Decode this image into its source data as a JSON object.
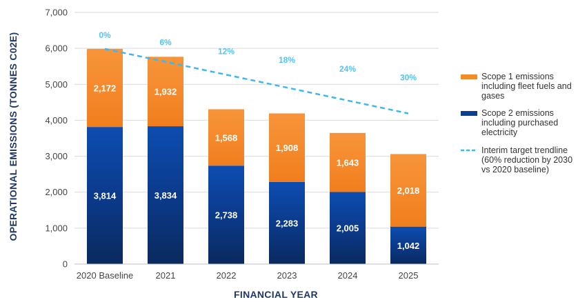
{
  "chart_data": {
    "type": "bar",
    "stacked": true,
    "categories": [
      "2020 Baseline",
      "2021",
      "2022",
      "2023",
      "2024",
      "2025"
    ],
    "series": [
      {
        "key": "scope2",
        "name": "Scope 2 emissions including purchased electricity",
        "legend_lines": [
          "Scope 2 emissions",
          "including purchased",
          "electricity"
        ],
        "color": "#0b3f94",
        "values": [
          3814,
          3834,
          2738,
          2283,
          2005,
          1042
        ],
        "labels": [
          "3,814",
          "3,834",
          "2,738",
          "2,283",
          "2,005",
          "1,042"
        ]
      },
      {
        "key": "scope1",
        "name": "Scope 1 emissions including fleet fuels and gases",
        "legend_lines": [
          "Scope 1 emissions",
          "including fleet fuels and",
          "gases"
        ],
        "color": "#f58a2c",
        "values": [
          2172,
          1932,
          1568,
          1908,
          1643,
          2018
        ],
        "labels": [
          "2,172",
          "1,932",
          "1,568",
          "1,908",
          "1,643",
          "2,018"
        ]
      }
    ],
    "trendline": {
      "name": "Interim target trendline (60% reduction by 2030 vs 2020 baseline)",
      "legend_lines": [
        "Interim target trendline",
        "(60% reduction by 2030",
        "vs 2020 baseline)"
      ],
      "color": "#3db8ec",
      "style": "dashed",
      "start": {
        "category": "2020 Baseline",
        "value": 5986
      },
      "end": {
        "category": "2025",
        "value": 4190
      },
      "reduction_labels": [
        "0%",
        "6%",
        "12%",
        "18%",
        "24%",
        "30%"
      ]
    },
    "xlabel": "FINANCIAL YEAR",
    "ylabel": "OPERATIONAL EMISSIONS (TONNES C02E)",
    "ylim": [
      0,
      7000
    ],
    "yticks": [
      "0",
      "1,000",
      "2,000",
      "3,000",
      "4,000",
      "5,000",
      "6,000",
      "7,000"
    ],
    "grid": true,
    "legend_position": "right"
  }
}
